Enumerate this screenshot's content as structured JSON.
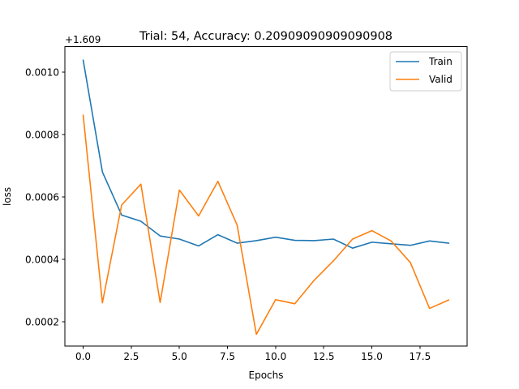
{
  "chart_data": {
    "type": "line",
    "title": "Trial: 54, Accuracy: 0.20909090909090908",
    "xlabel": "Epochs",
    "ylabel": "loss",
    "y_offset_label": "+1.609",
    "x": [
      0,
      1,
      2,
      3,
      4,
      5,
      6,
      7,
      8,
      9,
      10,
      11,
      12,
      13,
      14,
      15,
      16,
      17,
      18,
      19
    ],
    "xlim": [
      -0.95,
      19.95
    ],
    "ylim": [
      0.000122,
      0.001081
    ],
    "x_ticks": [
      0.0,
      2.5,
      5.0,
      7.5,
      10.0,
      12.5,
      15.0,
      17.5
    ],
    "x_tick_labels": [
      "0.0",
      "2.5",
      "5.0",
      "7.5",
      "10.0",
      "12.5",
      "15.0",
      "17.5"
    ],
    "y_ticks": [
      0.0002,
      0.0004,
      0.0006,
      0.0008,
      0.001
    ],
    "y_tick_labels": [
      "0.0002",
      "0.0004",
      "0.0006",
      "0.0008",
      "0.0010"
    ],
    "grid": false,
    "legend_position": "top-right",
    "series": [
      {
        "name": "Train",
        "color": "#1f77b4",
        "values": [
          0.001038,
          0.00068,
          0.000542,
          0.000522,
          0.000475,
          0.000465,
          0.000443,
          0.000479,
          0.000452,
          0.00046,
          0.000471,
          0.000461,
          0.00046,
          0.000465,
          0.000436,
          0.000455,
          0.00045,
          0.000445,
          0.000459,
          0.000452
        ]
      },
      {
        "name": "Valid",
        "color": "#ff7f0e",
        "values": [
          0.000862,
          0.000261,
          0.000574,
          0.000641,
          0.000262,
          0.000622,
          0.000539,
          0.00065,
          0.00051,
          0.00016,
          0.000271,
          0.000258,
          0.000333,
          0.000395,
          0.000465,
          0.000492,
          0.000459,
          0.00039,
          0.000243,
          0.00027
        ]
      }
    ]
  }
}
